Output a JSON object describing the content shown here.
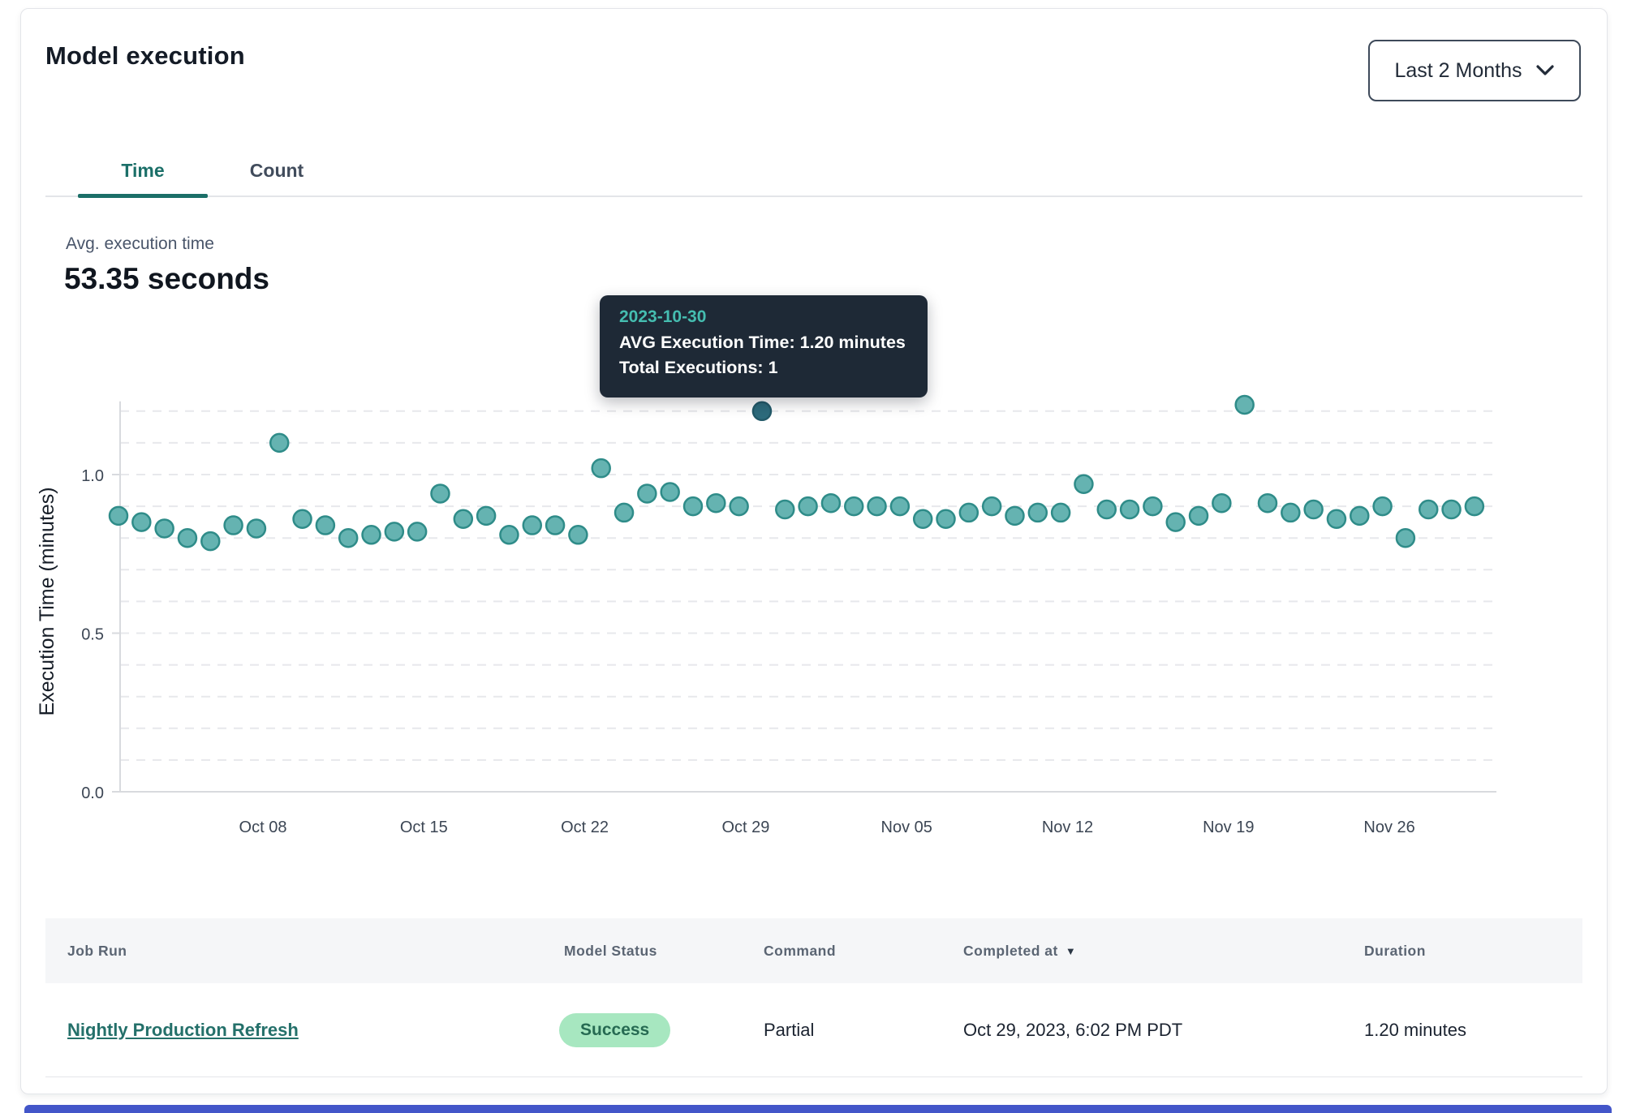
{
  "header": {
    "title": "Model execution",
    "range_selector": {
      "value": "Last 2 Months"
    }
  },
  "tabs": [
    {
      "label": "Time",
      "active": true
    },
    {
      "label": "Count",
      "active": false
    }
  ],
  "kpi": {
    "label": "Avg. execution time",
    "value": "53.35 seconds"
  },
  "tooltip": {
    "date": "2023-10-30",
    "avg_line": "AVG Execution Time: 1.20 minutes",
    "total_line": "Total Executions: 1"
  },
  "chart_data": {
    "type": "scatter",
    "title": "",
    "xlabel": "",
    "ylabel": "Execution Time (minutes)",
    "ylim": [
      0,
      1.26
    ],
    "grid": "horizontal-dashed-every-0.1",
    "legend": "none",
    "y_ticks": [
      {
        "label": "0.0",
        "value": 0
      },
      {
        "label": "0.5",
        "value": 0.5
      },
      {
        "label": "1.0",
        "value": 1.0
      }
    ],
    "x_tick_labels": [
      "Oct 08",
      "Oct 15",
      "Oct 22",
      "Oct 29",
      "Nov 05",
      "Nov 12",
      "Nov 19",
      "Nov 26"
    ],
    "highlight_date": "2023-10-30",
    "points": [
      {
        "date": "2023-10-02",
        "value": 0.87
      },
      {
        "date": "2023-10-03",
        "value": 0.85
      },
      {
        "date": "2023-10-04",
        "value": 0.83
      },
      {
        "date": "2023-10-05",
        "value": 0.8
      },
      {
        "date": "2023-10-06",
        "value": 0.79
      },
      {
        "date": "2023-10-07",
        "value": 0.84
      },
      {
        "date": "2023-10-08",
        "value": 0.83
      },
      {
        "date": "2023-10-09",
        "value": 1.1
      },
      {
        "date": "2023-10-10",
        "value": 0.86
      },
      {
        "date": "2023-10-11",
        "value": 0.84
      },
      {
        "date": "2023-10-12",
        "value": 0.8
      },
      {
        "date": "2023-10-13",
        "value": 0.81
      },
      {
        "date": "2023-10-14",
        "value": 0.82
      },
      {
        "date": "2023-10-15",
        "value": 0.82
      },
      {
        "date": "2023-10-16",
        "value": 0.94
      },
      {
        "date": "2023-10-17",
        "value": 0.86
      },
      {
        "date": "2023-10-18",
        "value": 0.87
      },
      {
        "date": "2023-10-19",
        "value": 0.81
      },
      {
        "date": "2023-10-20",
        "value": 0.84
      },
      {
        "date": "2023-10-21",
        "value": 0.84
      },
      {
        "date": "2023-10-22",
        "value": 0.81
      },
      {
        "date": "2023-10-23",
        "value": 1.02
      },
      {
        "date": "2023-10-24",
        "value": 0.88
      },
      {
        "date": "2023-10-25",
        "value": 0.94
      },
      {
        "date": "2023-10-26",
        "value": 0.945
      },
      {
        "date": "2023-10-27",
        "value": 0.9
      },
      {
        "date": "2023-10-28",
        "value": 0.91
      },
      {
        "date": "2023-10-29",
        "value": 0.9
      },
      {
        "date": "2023-10-30",
        "value": 1.2
      },
      {
        "date": "2023-10-31",
        "value": 0.89
      },
      {
        "date": "2023-11-01",
        "value": 0.9
      },
      {
        "date": "2023-11-02",
        "value": 0.91
      },
      {
        "date": "2023-11-03",
        "value": 0.9
      },
      {
        "date": "2023-11-04",
        "value": 0.9
      },
      {
        "date": "2023-11-05",
        "value": 0.9
      },
      {
        "date": "2023-11-06",
        "value": 0.86
      },
      {
        "date": "2023-11-07",
        "value": 0.86
      },
      {
        "date": "2023-11-08",
        "value": 0.88
      },
      {
        "date": "2023-11-09",
        "value": 0.9
      },
      {
        "date": "2023-11-10",
        "value": 0.87
      },
      {
        "date": "2023-11-11",
        "value": 0.88
      },
      {
        "date": "2023-11-12",
        "value": 0.88
      },
      {
        "date": "2023-11-13",
        "value": 0.97
      },
      {
        "date": "2023-11-14",
        "value": 0.89
      },
      {
        "date": "2023-11-15",
        "value": 0.89
      },
      {
        "date": "2023-11-16",
        "value": 0.9
      },
      {
        "date": "2023-11-17",
        "value": 0.85
      },
      {
        "date": "2023-11-18",
        "value": 0.87
      },
      {
        "date": "2023-11-19",
        "value": 0.91
      },
      {
        "date": "2023-11-20",
        "value": 1.22
      },
      {
        "date": "2023-11-21",
        "value": 0.91
      },
      {
        "date": "2023-11-22",
        "value": 0.88
      },
      {
        "date": "2023-11-23",
        "value": 0.89
      },
      {
        "date": "2023-11-24",
        "value": 0.86
      },
      {
        "date": "2023-11-25",
        "value": 0.87
      },
      {
        "date": "2023-11-26",
        "value": 0.9
      },
      {
        "date": "2023-11-27",
        "value": 0.8
      },
      {
        "date": "2023-11-28",
        "value": 0.89
      },
      {
        "date": "2023-11-29",
        "value": 0.89
      },
      {
        "date": "2023-11-30",
        "value": 0.9
      }
    ]
  },
  "table": {
    "columns": [
      {
        "label": "Job Run"
      },
      {
        "label": "Model Status"
      },
      {
        "label": "Command"
      },
      {
        "label": "Completed at",
        "sorted": "desc"
      },
      {
        "label": "Duration"
      }
    ],
    "rows": [
      {
        "job_run": "Nightly Production Refresh",
        "model_status": "Success",
        "command": "Partial",
        "completed_at": "Oct 29, 2023, 6:02 PM PDT",
        "duration": "1.20 minutes"
      }
    ]
  },
  "icons": {
    "sort_desc_icon": "▼"
  },
  "colors": {
    "teal": "#1b6f68",
    "link": "#24706a",
    "dot_fill": "#65b3b1",
    "dot_stroke": "#2f8c89",
    "hl_fill": "#2d6b7c",
    "hl_stroke": "#235a69",
    "grid": "#e7e8ec",
    "axis": "#d8dade",
    "tick_text": "#3c4654",
    "ylabel_text": "#161d27",
    "tooltip_bg": "#1e2936",
    "tooltip_date": "#45bdb0",
    "badge_bg": "#a7e7c0",
    "badge_text": "#266a52",
    "bar_blue": "#4356c9"
  }
}
